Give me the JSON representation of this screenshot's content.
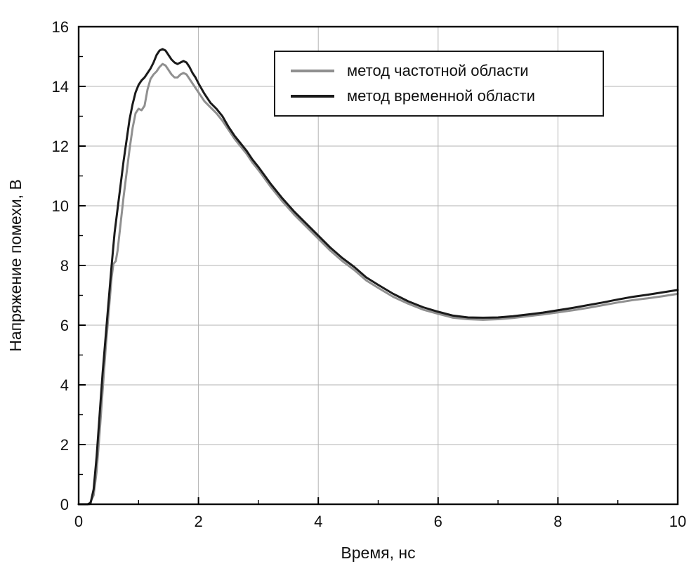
{
  "figure_title": "",
  "chart_data": {
    "type": "line",
    "title": "",
    "xlabel": "Время, нс",
    "ylabel": "Напряжение помехи, В",
    "xlim": [
      0,
      10
    ],
    "ylim": [
      0,
      16
    ],
    "x_major_ticks": [
      0,
      2,
      4,
      6,
      8,
      10
    ],
    "x_minor_step": 1,
    "y_major_ticks": [
      0,
      2,
      4,
      6,
      8,
      10,
      12,
      14,
      16
    ],
    "y_minor_step": 1,
    "grid": true,
    "grid_color": "#b3b3b3",
    "frame_color": "#000000",
    "legend_position": "top-center",
    "series": [
      {
        "name": "метод частотной области",
        "color": "#909090",
        "width": 3,
        "points": [
          [
            0,
            0
          ],
          [
            0.18,
            0
          ],
          [
            0.25,
            0.3
          ],
          [
            0.3,
            1.1
          ],
          [
            0.35,
            2.4
          ],
          [
            0.4,
            3.8
          ],
          [
            0.45,
            5.2
          ],
          [
            0.5,
            6.4
          ],
          [
            0.55,
            7.6
          ],
          [
            0.58,
            8.05
          ],
          [
            0.62,
            8.15
          ],
          [
            0.65,
            8.5
          ],
          [
            0.7,
            9.4
          ],
          [
            0.75,
            10.3
          ],
          [
            0.8,
            11.1
          ],
          [
            0.85,
            11.9
          ],
          [
            0.9,
            12.6
          ],
          [
            0.95,
            13.1
          ],
          [
            1.0,
            13.25
          ],
          [
            1.05,
            13.2
          ],
          [
            1.1,
            13.35
          ],
          [
            1.15,
            13.9
          ],
          [
            1.2,
            14.25
          ],
          [
            1.25,
            14.4
          ],
          [
            1.3,
            14.5
          ],
          [
            1.35,
            14.65
          ],
          [
            1.4,
            14.75
          ],
          [
            1.45,
            14.7
          ],
          [
            1.5,
            14.55
          ],
          [
            1.55,
            14.4
          ],
          [
            1.6,
            14.3
          ],
          [
            1.65,
            14.3
          ],
          [
            1.7,
            14.4
          ],
          [
            1.75,
            14.45
          ],
          [
            1.8,
            14.4
          ],
          [
            1.85,
            14.25
          ],
          [
            1.9,
            14.1
          ],
          [
            1.95,
            13.95
          ],
          [
            2.0,
            13.8
          ],
          [
            2.1,
            13.5
          ],
          [
            2.2,
            13.3
          ],
          [
            2.3,
            13.1
          ],
          [
            2.4,
            12.85
          ],
          [
            2.5,
            12.55
          ],
          [
            2.6,
            12.25
          ],
          [
            2.7,
            12.0
          ],
          [
            2.8,
            11.75
          ],
          [
            2.9,
            11.45
          ],
          [
            3.0,
            11.2
          ],
          [
            3.2,
            10.65
          ],
          [
            3.4,
            10.15
          ],
          [
            3.6,
            9.7
          ],
          [
            3.8,
            9.3
          ],
          [
            4.0,
            8.9
          ],
          [
            4.2,
            8.5
          ],
          [
            4.4,
            8.15
          ],
          [
            4.6,
            7.85
          ],
          [
            4.8,
            7.5
          ],
          [
            5.0,
            7.25
          ],
          [
            5.25,
            6.95
          ],
          [
            5.5,
            6.72
          ],
          [
            5.75,
            6.52
          ],
          [
            6.0,
            6.38
          ],
          [
            6.25,
            6.25
          ],
          [
            6.5,
            6.2
          ],
          [
            6.75,
            6.18
          ],
          [
            7.0,
            6.2
          ],
          [
            7.25,
            6.24
          ],
          [
            7.5,
            6.3
          ],
          [
            7.75,
            6.36
          ],
          [
            8.0,
            6.43
          ],
          [
            8.25,
            6.5
          ],
          [
            8.5,
            6.58
          ],
          [
            8.75,
            6.67
          ],
          [
            9.0,
            6.76
          ],
          [
            9.25,
            6.84
          ],
          [
            9.5,
            6.9
          ],
          [
            9.75,
            6.97
          ],
          [
            10,
            7.05
          ]
        ]
      },
      {
        "name": "метод временной области",
        "color": "#1a1a1a",
        "width": 3,
        "points": [
          [
            0,
            0
          ],
          [
            0.15,
            0
          ],
          [
            0.2,
            0.05
          ],
          [
            0.25,
            0.5
          ],
          [
            0.3,
            1.6
          ],
          [
            0.35,
            3.0
          ],
          [
            0.4,
            4.4
          ],
          [
            0.45,
            5.6
          ],
          [
            0.5,
            6.8
          ],
          [
            0.55,
            8.0
          ],
          [
            0.6,
            9.1
          ],
          [
            0.65,
            9.9
          ],
          [
            0.7,
            10.7
          ],
          [
            0.75,
            11.5
          ],
          [
            0.8,
            12.2
          ],
          [
            0.85,
            12.9
          ],
          [
            0.9,
            13.4
          ],
          [
            0.95,
            13.8
          ],
          [
            1.0,
            14.05
          ],
          [
            1.05,
            14.2
          ],
          [
            1.1,
            14.3
          ],
          [
            1.15,
            14.45
          ],
          [
            1.2,
            14.6
          ],
          [
            1.25,
            14.8
          ],
          [
            1.3,
            15.05
          ],
          [
            1.35,
            15.2
          ],
          [
            1.4,
            15.25
          ],
          [
            1.45,
            15.2
          ],
          [
            1.5,
            15.05
          ],
          [
            1.55,
            14.9
          ],
          [
            1.6,
            14.8
          ],
          [
            1.65,
            14.75
          ],
          [
            1.7,
            14.8
          ],
          [
            1.75,
            14.85
          ],
          [
            1.8,
            14.8
          ],
          [
            1.85,
            14.65
          ],
          [
            1.9,
            14.45
          ],
          [
            1.95,
            14.3
          ],
          [
            2.0,
            14.1
          ],
          [
            2.1,
            13.75
          ],
          [
            2.2,
            13.45
          ],
          [
            2.3,
            13.25
          ],
          [
            2.4,
            13.0
          ],
          [
            2.5,
            12.65
          ],
          [
            2.6,
            12.35
          ],
          [
            2.7,
            12.1
          ],
          [
            2.8,
            11.85
          ],
          [
            2.9,
            11.55
          ],
          [
            3.0,
            11.3
          ],
          [
            3.2,
            10.75
          ],
          [
            3.4,
            10.25
          ],
          [
            3.6,
            9.8
          ],
          [
            3.8,
            9.4
          ],
          [
            4.0,
            9.0
          ],
          [
            4.2,
            8.6
          ],
          [
            4.4,
            8.25
          ],
          [
            4.6,
            7.95
          ],
          [
            4.8,
            7.6
          ],
          [
            5.0,
            7.35
          ],
          [
            5.25,
            7.05
          ],
          [
            5.5,
            6.8
          ],
          [
            5.75,
            6.6
          ],
          [
            6.0,
            6.45
          ],
          [
            6.25,
            6.32
          ],
          [
            6.5,
            6.26
          ],
          [
            6.75,
            6.25
          ],
          [
            7.0,
            6.26
          ],
          [
            7.25,
            6.3
          ],
          [
            7.5,
            6.36
          ],
          [
            7.75,
            6.42
          ],
          [
            8.0,
            6.5
          ],
          [
            8.25,
            6.58
          ],
          [
            8.5,
            6.67
          ],
          [
            8.75,
            6.76
          ],
          [
            9.0,
            6.86
          ],
          [
            9.25,
            6.95
          ],
          [
            9.5,
            7.02
          ],
          [
            9.75,
            7.1
          ],
          [
            10,
            7.18
          ]
        ]
      }
    ]
  }
}
